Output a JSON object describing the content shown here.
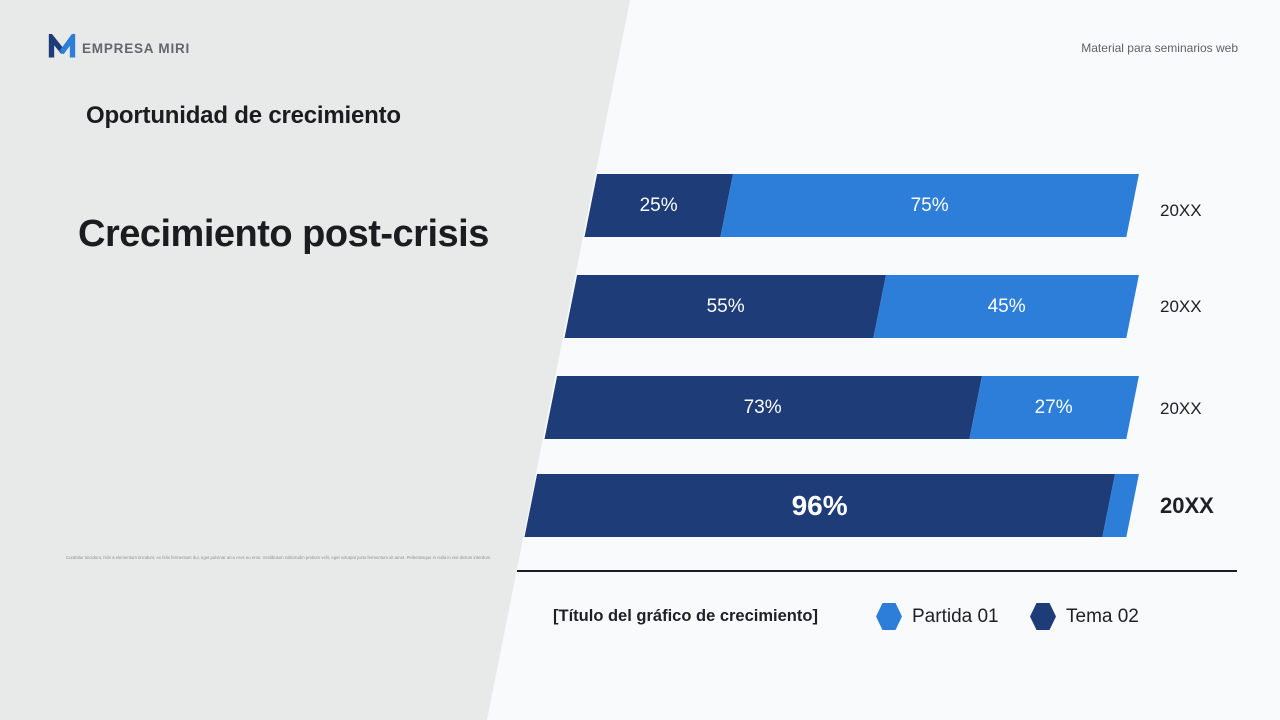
{
  "header": {
    "brand": "EMPRESA MIRI",
    "top_right_note": "Material para seminarios web"
  },
  "left_panel": {
    "kicker": "Oportunidad de crecimiento",
    "title": "Crecimiento post-crisis",
    "fine_print": "Curabitur tincidunt, felis a elementum tincidunt, ex felis fermentum dui, eget pulvinar arcu eros eu eros. Vestibulum sollicitudin pretium velit, eget volutpat justo fermentum sit amet. Pellentesque in nulla in nisi dictum interdum."
  },
  "colors": {
    "brand_dark_blue": "#1e3c78",
    "brand_light_blue": "#2d7ed8",
    "left_panel_gray": "#e8e9e9",
    "background": "#f9fafb",
    "text_dark": "#202124"
  },
  "chart_data": {
    "type": "bar",
    "orientation": "horizontal-stacked",
    "unit": "%",
    "title": "[Título del gráfico de crecimiento]",
    "categories": [
      "20XX",
      "20XX",
      "20XX",
      "20XX"
    ],
    "series": [
      {
        "name": "Tema 02",
        "color": "#1e3c78",
        "values": [
          25,
          55,
          73,
          96
        ]
      },
      {
        "name": "Partida 01",
        "color": "#2d7ed8",
        "values": [
          75,
          45,
          27,
          4
        ]
      }
    ],
    "xlim": [
      0,
      100
    ],
    "grid": false,
    "legend_position": "bottom",
    "rows": [
      {
        "year": "20XX",
        "dark": 25,
        "light": 75,
        "dark_label": "25%",
        "light_label": "75%"
      },
      {
        "year": "20XX",
        "dark": 55,
        "light": 45,
        "dark_label": "55%",
        "light_label": "45%"
      },
      {
        "year": "20XX",
        "dark": 73,
        "light": 27,
        "dark_label": "73%",
        "light_label": "27%"
      },
      {
        "year": "20XX",
        "dark": 96,
        "light": 4,
        "dark_label": "96%",
        "light_label": ""
      }
    ]
  },
  "legend": {
    "title": "[Título del gráfico de crecimiento]",
    "items": [
      {
        "label": "Partida 01",
        "color": "#2d7ed8"
      },
      {
        "label": "Tema 02",
        "color": "#1e3c78"
      }
    ]
  }
}
